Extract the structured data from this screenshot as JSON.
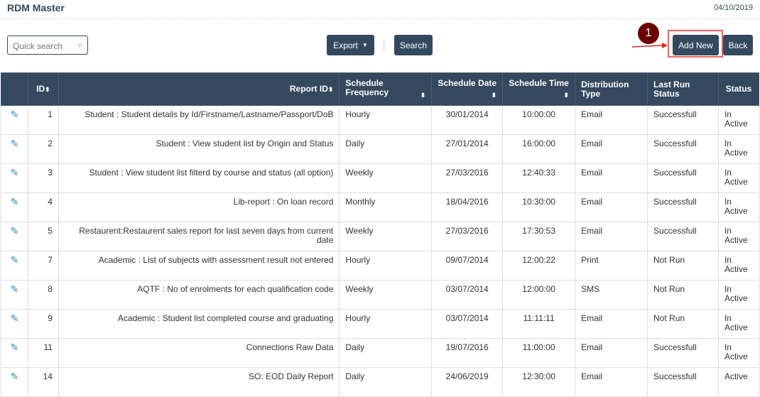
{
  "header": {
    "title": "RDM Master",
    "date": "04/10/2019"
  },
  "toolbar": {
    "search_placeholder": "Quick search",
    "export_label": "Export",
    "search_label": "Search",
    "add_new_label": "Add New",
    "back_label": "Back",
    "annotation": "1"
  },
  "colors": {
    "header_bg": "#34495e",
    "highlight": "#f06060",
    "badge": "#6b0000"
  },
  "table": {
    "columns": [
      "ID",
      "Report ID",
      "Schedule Frequency",
      "Schedule Date",
      "Schedule Time",
      "Distribution Type",
      "Last Run Status",
      "Status"
    ],
    "rows": [
      [
        "1",
        "Student : Student details by Id/Firstname/Lastname/Passport/DoB",
        "Hourly",
        "30/01/2014",
        "10:00:00",
        "Email",
        "Successfull",
        "In Active"
      ],
      [
        "2",
        "Student : View student list by Origin and Status",
        "Daily",
        "27/01/2014",
        "16:00:00",
        "Email",
        "Successfull",
        "In Active"
      ],
      [
        "3",
        "Student : View student list filterd by course and status (all option)",
        "Weekly",
        "27/03/2016",
        "12:40:33",
        "Email",
        "Successfull",
        "In Active"
      ],
      [
        "4",
        "Lib-report : On loan record",
        "Monthly",
        "18/04/2016",
        "10:30:00",
        "Email",
        "Successfull",
        "In Active"
      ],
      [
        "5",
        "Restaurent:Restaurent sales report for last seven days from current date",
        "Weekly",
        "27/03/2016",
        "17:30:53",
        "Email",
        "Successfull",
        "In Active"
      ],
      [
        "7",
        "Academic : List of subjects with assessment result not entered",
        "Hourly",
        "09/07/2014",
        "12:00:22",
        "Print",
        "Not Run",
        "In Active"
      ],
      [
        "8",
        "AQTF : No of enrolments for each qualification code",
        "Weekly",
        "03/07/2014",
        "12:00:00",
        "SMS",
        "Not Run",
        "In Active"
      ],
      [
        "9",
        "Academic : Student list completed course and graduating",
        "Hourly",
        "03/07/2014",
        "11:11:11",
        "Email",
        "Not Run",
        "In Active"
      ],
      [
        "11",
        "Connections Raw Data",
        "Daily",
        "19/07/2016",
        "11:00:00",
        "Email",
        "Successfull",
        "In Active"
      ],
      [
        "14",
        "SO: EOD Daily Report",
        "Daily",
        "24/06/2019",
        "12:30:00",
        "Email",
        "Successfull",
        "Active"
      ]
    ]
  }
}
